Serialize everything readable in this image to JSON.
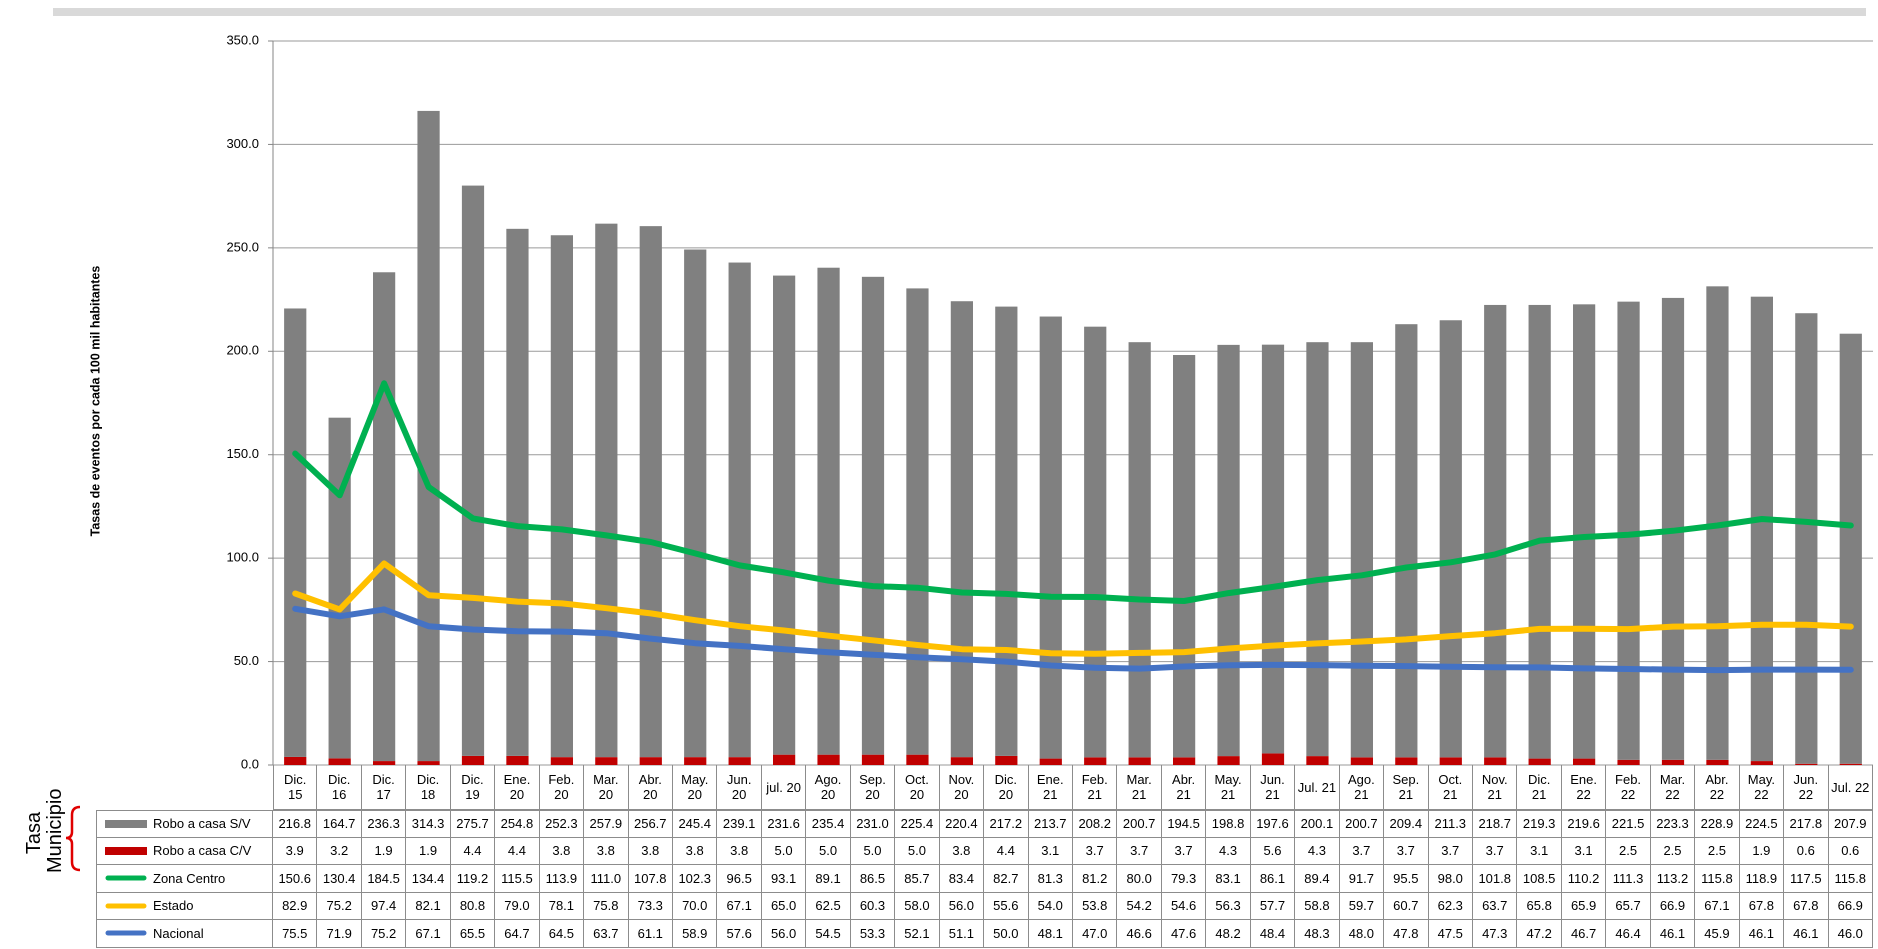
{
  "chart_data": {
    "type": "bar",
    "stacked": true,
    "y_label": "Tasas de eventos por cada 100 mil habitantes",
    "group_label": "Tasa Municipio",
    "categories": [
      "Dic. 15",
      "Dic. 16",
      "Dic. 17",
      "Dic. 18",
      "Dic. 19",
      "Ene. 20",
      "Feb. 20",
      "Mar. 20",
      "Abr. 20",
      "May. 20",
      "Jun. 20",
      "jul. 20",
      "Ago. 20",
      "Sep. 20",
      "Oct. 20",
      "Nov. 20",
      "Dic. 20",
      "Ene. 21",
      "Feb. 21",
      "Mar. 21",
      "Abr. 21",
      "May. 21",
      "Jun. 21",
      "Jul. 21",
      "Ago. 21",
      "Sep. 21",
      "Oct. 21",
      "Nov. 21",
      "Dic. 21",
      "Ene. 22",
      "Feb. 22",
      "Mar. 22",
      "Abr. 22",
      "May. 22",
      "Jun. 22",
      "Jul. 22"
    ],
    "ylim": [
      0,
      350
    ],
    "yticks": [
      {
        "value": 0,
        "label": "0.0"
      },
      {
        "value": 50,
        "label": "50.0"
      },
      {
        "value": 100,
        "label": "100.0"
      },
      {
        "value": 150,
        "label": "150.0"
      },
      {
        "value": 200,
        "label": "200.0"
      },
      {
        "value": 250,
        "label": "250.0"
      },
      {
        "value": 300,
        "label": "300.0"
      },
      {
        "value": 350,
        "label": "350.0"
      }
    ],
    "grid": true,
    "series": [
      {
        "name": "Robo a casa S/V",
        "type": "bar",
        "color": "#808080",
        "values": [
          216.8,
          164.7,
          236.3,
          314.3,
          275.7,
          254.8,
          252.3,
          257.9,
          256.7,
          245.4,
          239.1,
          231.6,
          235.4,
          231,
          225.4,
          220.4,
          217.2,
          213.7,
          208.2,
          200.7,
          194.5,
          198.8,
          197.6,
          200.1,
          200.7,
          209.4,
          211.3,
          218.7,
          219.3,
          219.6,
          221.5,
          223.3,
          228.9,
          224.5,
          217.8,
          207.9
        ],
        "value_labels": [
          "216.8",
          "164.7",
          "236.3",
          "314.3",
          "275.7",
          "254.8",
          "252.3",
          "257.9",
          "256.7",
          "245.4",
          "239.1",
          "231.6",
          "235.4",
          "231.0",
          "225.4",
          "220.4",
          "217.2",
          "213.7",
          "208.2",
          "200.7",
          "194.5",
          "198.8",
          "197.6",
          "200.1",
          "200.7",
          "209.4",
          "211.3",
          "218.7",
          "219.3",
          "219.6",
          "221.5",
          "223.3",
          "228.9",
          "224.5",
          "217.8",
          "207.9"
        ]
      },
      {
        "name": "Robo a casa C/V",
        "type": "bar",
        "color": "#c00000",
        "values": [
          3.9,
          3.2,
          1.9,
          1.9,
          4.4,
          4.4,
          3.8,
          3.8,
          3.8,
          3.8,
          3.8,
          5,
          5,
          5,
          5,
          3.8,
          4.4,
          3.1,
          3.7,
          3.7,
          3.7,
          4.3,
          5.6,
          4.3,
          3.7,
          3.7,
          3.7,
          3.7,
          3.1,
          3.1,
          2.5,
          2.5,
          2.5,
          1.9,
          0.6,
          0.6
        ],
        "value_labels": [
          "3.9",
          "3.2",
          "1.9",
          "1.9",
          "4.4",
          "4.4",
          "3.8",
          "3.8",
          "3.8",
          "3.8",
          "3.8",
          "5.0",
          "5.0",
          "5.0",
          "5.0",
          "3.8",
          "4.4",
          "3.1",
          "3.7",
          "3.7",
          "3.7",
          "4.3",
          "5.6",
          "4.3",
          "3.7",
          "3.7",
          "3.7",
          "3.7",
          "3.1",
          "3.1",
          "2.5",
          "2.5",
          "2.5",
          "1.9",
          "0.6",
          "0.6"
        ]
      },
      {
        "name": "Zona Centro",
        "type": "line",
        "color": "#00b050",
        "values": [
          150.6,
          130.4,
          184.5,
          134.4,
          119.2,
          115.5,
          113.9,
          111,
          107.8,
          102.3,
          96.5,
          93.1,
          89.1,
          86.5,
          85.7,
          83.4,
          82.7,
          81.3,
          81.2,
          80,
          79.3,
          83.1,
          86.1,
          89.4,
          91.7,
          95.5,
          98,
          101.8,
          108.5,
          110.2,
          111.3,
          113.2,
          115.8,
          118.9,
          117.5,
          115.8
        ],
        "value_labels": [
          "150.6",
          "130.4",
          "184.5",
          "134.4",
          "119.2",
          "115.5",
          "113.9",
          "111.0",
          "107.8",
          "102.3",
          "96.5",
          "93.1",
          "89.1",
          "86.5",
          "85.7",
          "83.4",
          "82.7",
          "81.3",
          "81.2",
          "80.0",
          "79.3",
          "83.1",
          "86.1",
          "89.4",
          "91.7",
          "95.5",
          "98.0",
          "101.8",
          "108.5",
          "110.2",
          "111.3",
          "113.2",
          "115.8",
          "118.9",
          "117.5",
          "115.8"
        ]
      },
      {
        "name": "Estado",
        "type": "line",
        "color": "#ffc000",
        "values": [
          82.9,
          75.2,
          97.4,
          82.1,
          80.8,
          79,
          78.1,
          75.8,
          73.3,
          70,
          67.1,
          65,
          62.5,
          60.3,
          58,
          56,
          55.6,
          54,
          53.8,
          54.2,
          54.6,
          56.3,
          57.7,
          58.8,
          59.7,
          60.7,
          62.3,
          63.7,
          65.8,
          65.9,
          65.7,
          66.9,
          67.1,
          67.8,
          67.8,
          66.9
        ],
        "value_labels": [
          "82.9",
          "75.2",
          "97.4",
          "82.1",
          "80.8",
          "79.0",
          "78.1",
          "75.8",
          "73.3",
          "70.0",
          "67.1",
          "65.0",
          "62.5",
          "60.3",
          "58.0",
          "56.0",
          "55.6",
          "54.0",
          "53.8",
          "54.2",
          "54.6",
          "56.3",
          "57.7",
          "58.8",
          "59.7",
          "60.7",
          "62.3",
          "63.7",
          "65.8",
          "65.9",
          "65.7",
          "66.9",
          "67.1",
          "67.8",
          "67.8",
          "66.9"
        ]
      },
      {
        "name": "Nacional",
        "type": "line",
        "color": "#4472c4",
        "values": [
          75.5,
          71.9,
          75.2,
          67.1,
          65.5,
          64.7,
          64.5,
          63.7,
          61.1,
          58.9,
          57.6,
          56,
          54.5,
          53.3,
          52.1,
          51.1,
          50,
          48.1,
          47,
          46.6,
          47.6,
          48.2,
          48.4,
          48.3,
          48,
          47.8,
          47.5,
          47.3,
          47.2,
          46.7,
          46.4,
          46.1,
          45.9,
          46.1,
          46.1,
          46
        ],
        "value_labels": [
          "75.5",
          "71.9",
          "75.2",
          "67.1",
          "65.5",
          "64.7",
          "64.5",
          "63.7",
          "61.1",
          "58.9",
          "57.6",
          "56.0",
          "54.5",
          "53.3",
          "52.1",
          "51.1",
          "50.0",
          "48.1",
          "47.0",
          "46.6",
          "47.6",
          "48.2",
          "48.4",
          "48.3",
          "48.0",
          "47.8",
          "47.5",
          "47.3",
          "47.2",
          "46.7",
          "46.4",
          "46.1",
          "45.9",
          "46.1",
          "46.1",
          "46.0"
        ]
      }
    ]
  }
}
